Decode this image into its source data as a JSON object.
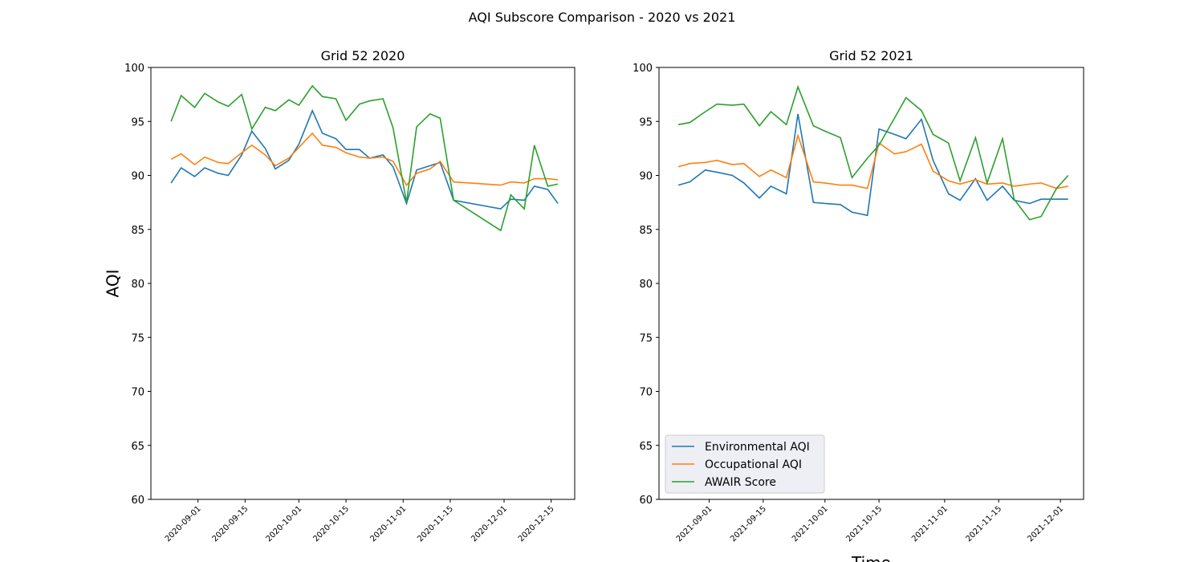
{
  "title": "AQI Subscore Comparison - 2020 vs 2021",
  "chart_data": [
    {
      "type": "line",
      "title": "Grid 52 2020",
      "y_label": "AQI",
      "x": [
        "2020-08-24",
        "2020-08-27",
        "2020-08-31",
        "2020-09-03",
        "2020-09-07",
        "2020-09-10",
        "2020-09-14",
        "2020-09-17",
        "2020-09-21",
        "2020-09-24",
        "2020-09-28",
        "2020-10-01",
        "2020-10-05",
        "2020-10-08",
        "2020-10-12",
        "2020-10-15",
        "2020-10-19",
        "2020-10-22",
        "2020-10-26",
        "2020-10-29",
        "2020-11-02",
        "2020-11-05",
        "2020-11-09",
        "2020-11-12",
        "2020-11-16",
        "2020-11-30",
        "2020-12-03",
        "2020-12-07",
        "2020-12-10",
        "2020-12-14",
        "2020-12-17"
      ],
      "xlim": [
        "2020-08-18",
        "2020-12-22"
      ],
      "xticks": [
        "2020-09-01",
        "2020-09-15",
        "2020-10-01",
        "2020-10-15",
        "2020-11-01",
        "2020-11-15",
        "2020-12-01",
        "2020-12-15"
      ],
      "ylim": [
        60,
        100
      ],
      "yticks": [
        60,
        65,
        70,
        75,
        80,
        85,
        90,
        95,
        100
      ],
      "grid": false,
      "series": [
        {
          "color": "#1f77b4",
          "values": [
            89.3,
            90.7,
            89.9,
            90.7,
            90.2,
            90.0,
            91.9,
            94.1,
            92.5,
            90.6,
            91.4,
            92.9,
            96.0,
            93.9,
            93.4,
            92.4,
            92.4,
            91.6,
            91.9,
            90.8,
            87.4,
            90.5,
            90.9,
            91.2,
            87.7,
            86.9,
            87.8,
            87.7,
            89.0,
            88.7,
            87.4
          ]
        },
        {
          "color": "#ff7f0e",
          "values": [
            91.5,
            92.0,
            91.0,
            91.7,
            91.2,
            91.1,
            92.1,
            92.8,
            91.9,
            90.9,
            91.6,
            92.6,
            93.9,
            92.8,
            92.6,
            92.1,
            91.7,
            91.6,
            91.7,
            91.3,
            89.1,
            90.2,
            90.6,
            91.3,
            89.4,
            89.1,
            89.4,
            89.3,
            89.7,
            89.7,
            89.6
          ]
        },
        {
          "color": "#2ca02c",
          "values": [
            95.0,
            97.4,
            96.3,
            97.6,
            96.8,
            96.4,
            97.5,
            94.3,
            96.3,
            96.0,
            97.0,
            96.5,
            98.3,
            97.3,
            97.1,
            95.1,
            96.6,
            96.9,
            97.1,
            94.4,
            87.5,
            94.5,
            95.7,
            95.3,
            87.7,
            84.9,
            88.2,
            86.9,
            92.8,
            89.0,
            89.2
          ]
        }
      ]
    },
    {
      "type": "line",
      "title": "Grid 52 2021",
      "x_label": "Time",
      "legend": "lower left",
      "x": [
        "2021-08-24",
        "2021-08-27",
        "2021-08-31",
        "2021-09-03",
        "2021-09-07",
        "2021-09-10",
        "2021-09-14",
        "2021-09-17",
        "2021-09-21",
        "2021-09-24",
        "2021-09-28",
        "2021-10-01",
        "2021-10-05",
        "2021-10-08",
        "2021-10-12",
        "2021-10-15",
        "2021-10-19",
        "2021-10-22",
        "2021-10-26",
        "2021-10-29",
        "2021-11-02",
        "2021-11-05",
        "2021-11-09",
        "2021-11-12",
        "2021-11-16",
        "2021-11-19",
        "2021-11-23",
        "2021-11-26",
        "2021-11-30",
        "2021-12-03"
      ],
      "xlim": [
        "2021-08-19",
        "2021-12-07"
      ],
      "xticks": [
        "2021-09-01",
        "2021-09-15",
        "2021-10-01",
        "2021-10-15",
        "2021-11-01",
        "2021-11-15",
        "2021-12-01"
      ],
      "ylim": [
        60,
        100
      ],
      "yticks": [
        60,
        65,
        70,
        75,
        80,
        85,
        90,
        95,
        100
      ],
      "grid": false,
      "series": [
        {
          "name": "Environmental AQI",
          "color": "#1f77b4",
          "values": [
            89.1,
            89.4,
            90.5,
            90.3,
            90.0,
            89.3,
            87.9,
            89.0,
            88.3,
            95.7,
            87.5,
            87.4,
            87.3,
            86.6,
            86.3,
            94.3,
            93.8,
            93.4,
            95.2,
            91.4,
            88.3,
            87.7,
            89.7,
            87.7,
            89.0,
            87.7,
            87.4,
            87.8,
            87.8,
            87.8
          ]
        },
        {
          "name": "Occupational AQI",
          "color": "#ff7f0e",
          "values": [
            90.8,
            91.1,
            91.2,
            91.4,
            91.0,
            91.1,
            89.9,
            90.5,
            89.8,
            93.7,
            89.4,
            89.3,
            89.1,
            89.1,
            88.8,
            93.0,
            92.0,
            92.2,
            92.9,
            90.4,
            89.5,
            89.2,
            89.6,
            89.2,
            89.3,
            89.0,
            89.2,
            89.3,
            88.8,
            89.0
          ]
        },
        {
          "name": "AWAIR Score",
          "color": "#2ca02c",
          "values": [
            94.7,
            94.9,
            95.9,
            96.6,
            96.5,
            96.6,
            94.6,
            95.9,
            94.7,
            98.2,
            94.6,
            94.1,
            93.5,
            89.8,
            91.6,
            92.8,
            95.3,
            97.2,
            96.0,
            93.8,
            93.0,
            89.5,
            93.5,
            89.3,
            93.4,
            87.8,
            85.9,
            86.2,
            88.8,
            90.0
          ]
        }
      ]
    }
  ]
}
